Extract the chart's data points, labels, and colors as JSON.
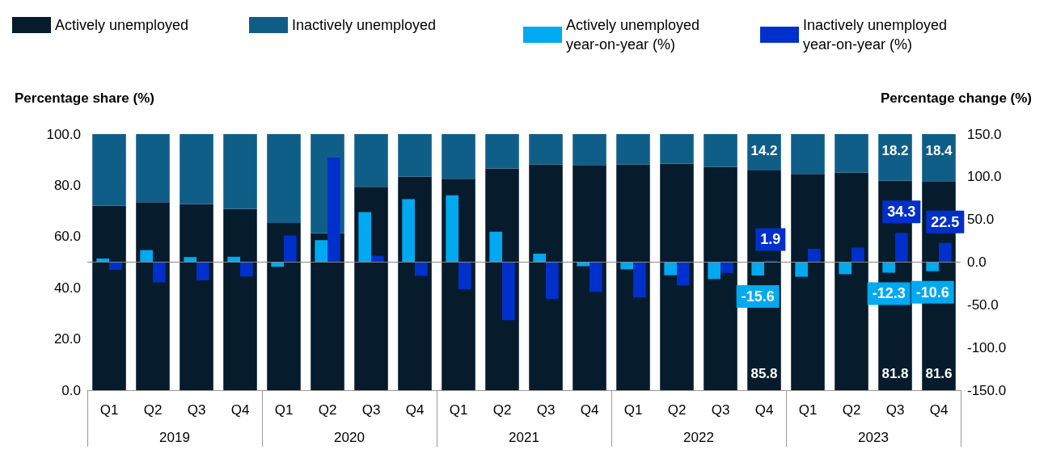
{
  "chart_data": [
    {
      "type": "bar",
      "stacked": true,
      "ylabel": "Percentage share (%)",
      "categories": [
        "Q1",
        "Q2",
        "Q3",
        "Q4",
        "Q1",
        "Q2",
        "Q3",
        "Q4",
        "Q1",
        "Q2",
        "Q3",
        "Q4",
        "Q1",
        "Q2",
        "Q3",
        "Q4",
        "Q1",
        "Q2",
        "Q3",
        "Q4"
      ],
      "annotations": [
        "2019",
        "2020",
        "2021",
        "2022",
        "2023"
      ],
      "series": [
        {
          "name": "Actively unemployed",
          "color": "#061c2c",
          "values": [
            72.1,
            73.4,
            72.6,
            70.8,
            65.3,
            61.3,
            79.4,
            83.4,
            82.6,
            86.6,
            88.1,
            87.9,
            88.1,
            88.4,
            87.2,
            85.8,
            84.5,
            84.9,
            81.8,
            81.6
          ],
          "value_labels": [
            null,
            null,
            null,
            null,
            null,
            null,
            null,
            null,
            null,
            null,
            null,
            null,
            null,
            null,
            null,
            "85.8",
            null,
            null,
            "81.8",
            "81.6"
          ]
        },
        {
          "name": "Inactively unemployed",
          "color": "#0f5e88",
          "values": [
            27.9,
            26.6,
            27.4,
            29.2,
            34.7,
            38.7,
            20.6,
            16.6,
            17.4,
            13.4,
            11.9,
            12.1,
            11.9,
            11.6,
            12.8,
            14.2,
            15.5,
            15.1,
            18.2,
            18.4
          ],
          "value_labels": [
            null,
            null,
            null,
            null,
            null,
            null,
            null,
            null,
            null,
            null,
            null,
            null,
            null,
            null,
            null,
            "14.2",
            null,
            null,
            "18.2",
            "18.4"
          ]
        }
      ],
      "ylim": [
        0,
        100
      ],
      "yticks": [
        {
          "value": 0,
          "label": "0.0"
        },
        {
          "value": 20,
          "label": "20.0"
        },
        {
          "value": 40,
          "label": "40.0"
        },
        {
          "value": 60,
          "label": "60.0"
        },
        {
          "value": 80,
          "label": "80.0"
        },
        {
          "value": 100,
          "label": "100.0"
        }
      ],
      "grid": false,
      "legend": "top left"
    },
    {
      "type": "bar",
      "y2label": "Percentage change (%)",
      "categories": [
        "Q1",
        "Q2",
        "Q3",
        "Q4",
        "Q1",
        "Q2",
        "Q3",
        "Q4",
        "Q1",
        "Q2",
        "Q3",
        "Q4",
        "Q1",
        "Q2",
        "Q3",
        "Q4",
        "Q1",
        "Q2",
        "Q3",
        "Q4"
      ],
      "tick_labels": "y",
      "series": [
        {
          "name": "Actively unemployed year-on-year (%)",
          "color": "#00a9f0",
          "axis": "y2",
          "values": [
            4.2,
            14.1,
            6.0,
            6.3,
            -5.4,
            25.8,
            58.6,
            73.9,
            78.4,
            35.7,
            9.9,
            -4.8,
            -8.4,
            -15.3,
            -19.8,
            -15.6,
            -17.1,
            -14.1,
            -12.3,
            -10.6
          ],
          "value_labels": [
            null,
            null,
            null,
            null,
            null,
            null,
            null,
            null,
            null,
            null,
            null,
            null,
            null,
            null,
            null,
            "-15.6",
            null,
            null,
            "-12.3",
            "-10.6"
          ]
        },
        {
          "name": "Inactively unemployed year-on-year (%)",
          "color": "#0030cc",
          "axis": "y2",
          "values": [
            -9.0,
            -23.7,
            -21.3,
            -16.8,
            31.2,
            122.5,
            7.5,
            -16.2,
            -31.8,
            -67.9,
            -43.2,
            -34.8,
            -41.4,
            -27.3,
            -12.6,
            1.9,
            15.6,
            17.1,
            34.3,
            22.5
          ],
          "value_labels": [
            null,
            null,
            null,
            null,
            null,
            null,
            null,
            null,
            null,
            null,
            null,
            null,
            null,
            null,
            null,
            "1.9",
            null,
            null,
            "34.3",
            "22.5"
          ]
        }
      ],
      "y2lim": [
        -150,
        150
      ],
      "y2ticks": [
        {
          "value": -150,
          "label": "-150.0"
        },
        {
          "value": -100,
          "label": "-100.0"
        },
        {
          "value": -50,
          "label": "-50.0"
        },
        {
          "value": 0,
          "label": "0.0"
        },
        {
          "value": 50,
          "label": "50.0"
        },
        {
          "value": 100,
          "label": "100.0"
        },
        {
          "value": 150,
          "label": "150.0"
        }
      ],
      "ref_lines": [
        {
          "axis": "y2",
          "value": 0,
          "color": "#888888"
        }
      ],
      "grid": false,
      "legend": "top right"
    }
  ]
}
